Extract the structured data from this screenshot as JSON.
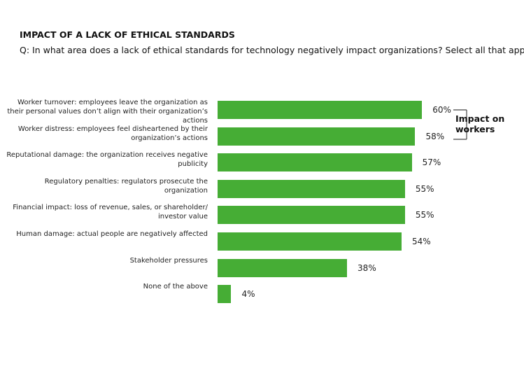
{
  "chart_data": {
    "type": "hbar",
    "title": "IMPACT OF A LACK OF ETHICAL STANDARDS",
    "subtitle": "Q: In what area does a lack of ethical standards for technology negatively impact organizations? Select all that apply.",
    "categories": [
      "Worker turnover: employees leave the organization as their personal values don’t align with their organization’s actions",
      "Worker distress: employees feel disheartened by their organization’s actions",
      "Reputational damage: the organization receives negative publicity",
      "Regulatory penalties: regulators prosecute the organization",
      "Financial impact: loss of revenue, sales, or shareholder/ investor value",
      "Human damage: actual people are negatively affected",
      "Stakeholder pressures",
      "None of the above"
    ],
    "values": [
      60,
      58,
      57,
      55,
      55,
      54,
      38,
      4
    ],
    "value_labels": [
      "60%",
      "58%",
      "57%",
      "55%",
      "55%",
      "54%",
      "38%",
      "4%"
    ],
    "color": "#46ad35",
    "xlim": [
      0,
      100
    ],
    "annotation": "Impact on workers"
  }
}
